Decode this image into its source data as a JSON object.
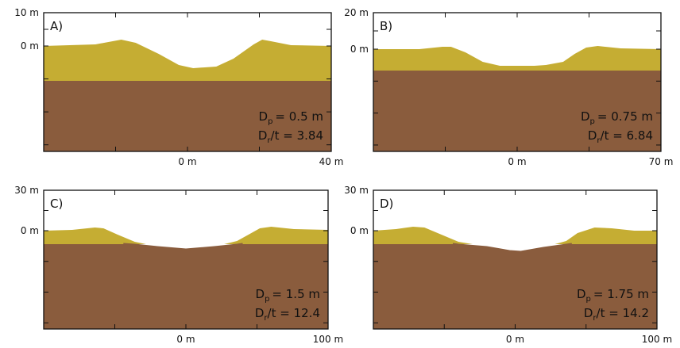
{
  "colors": {
    "background": "#ffffff",
    "ejecta": "#c5ad33",
    "target": "#8a5c3d",
    "frame": "#111111"
  },
  "panels": [
    {
      "id": "A",
      "label": "A)",
      "y_top_label": "10 m",
      "y_zero_label": "0 m",
      "x_center_label": "0 m",
      "x_right_label": "40 m",
      "annotation": {
        "d_main": "D",
        "d_sub": "p",
        "d_val": "= 0.5 m",
        "r_main": "D",
        "r_sub": "r",
        "r_val": "/t = 3.84"
      }
    },
    {
      "id": "B",
      "label": "B)",
      "y_top_label": "20 m",
      "y_zero_label": "0 m",
      "x_center_label": "0 m",
      "x_right_label": "70 m",
      "annotation": {
        "d_main": "D",
        "d_sub": "p",
        "d_val": "= 0.75 m",
        "r_main": "D",
        "r_sub": "r",
        "r_val": "/t = 6.84"
      }
    },
    {
      "id": "C",
      "label": "C)",
      "y_top_label": "30 m",
      "y_zero_label": "0 m",
      "x_center_label": "0 m",
      "x_right_label": "100 m",
      "annotation": {
        "d_main": "D",
        "d_sub": "p",
        "d_val": "= 1.5 m",
        "r_main": "D",
        "r_sub": "r",
        "r_val": "/t = 12.4"
      }
    },
    {
      "id": "D",
      "label": "D)",
      "y_top_label": "30 m",
      "y_zero_label": "0 m",
      "x_center_label": "0 m",
      "x_right_label": "100 m",
      "annotation": {
        "d_main": "D",
        "d_sub": "p",
        "d_val": "= 1.75 m",
        "r_main": "D",
        "r_sub": "r",
        "r_val": "/t = 14.2"
      }
    }
  ]
}
